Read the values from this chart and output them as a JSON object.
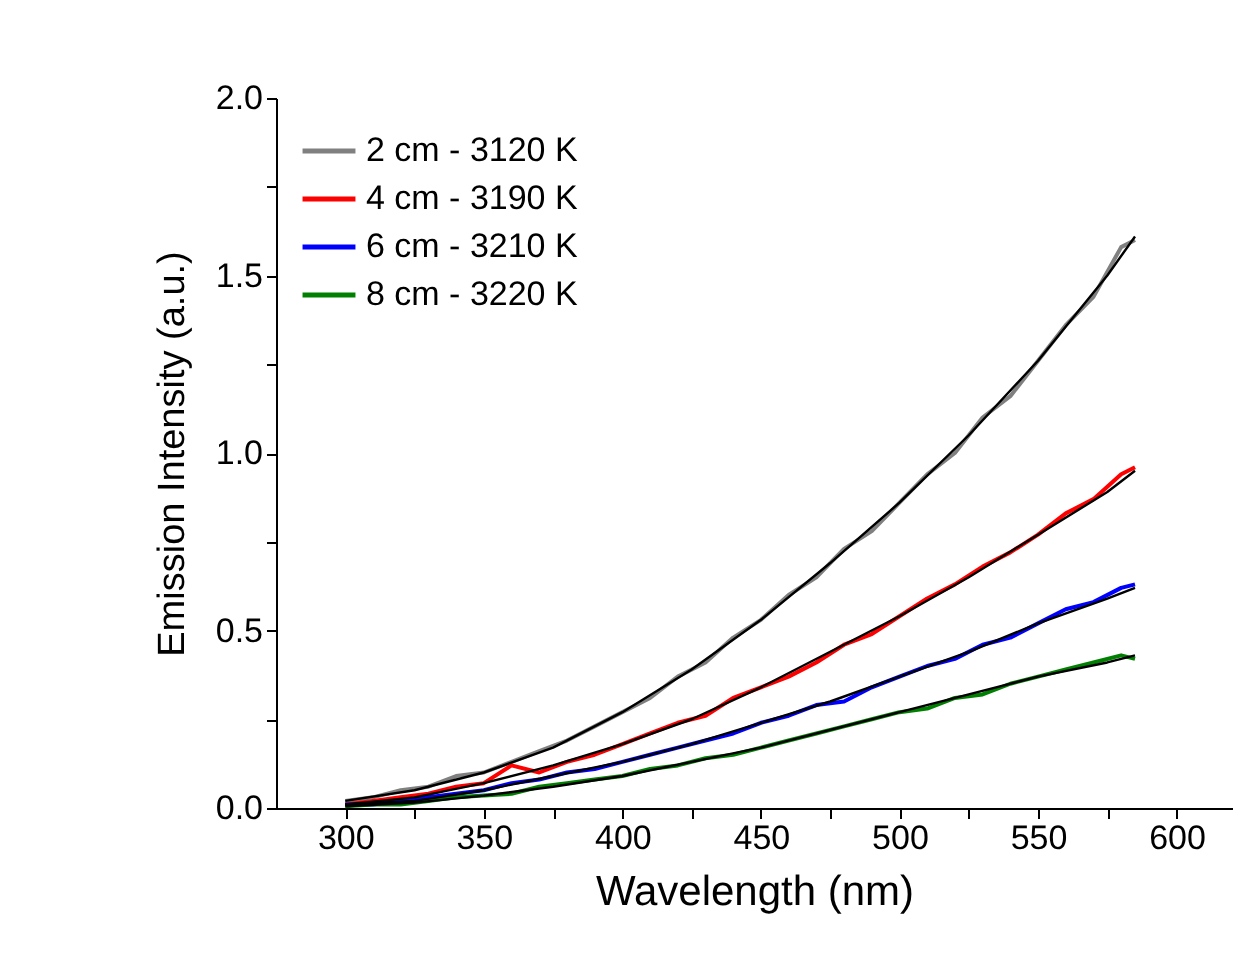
{
  "chart_data": {
    "type": "line",
    "xlabel": "Wavelength (nm)",
    "ylabel": "Emission Intensity (a.u.)",
    "x": [
      300,
      325,
      350,
      375,
      400,
      425,
      450,
      475,
      500,
      525,
      550,
      575,
      585
    ],
    "series": [
      {
        "name": "2 cm - 3120 K",
        "color": "#808080",
        "x": [
          300,
          310,
          320,
          330,
          340,
          350,
          360,
          370,
          380,
          390,
          400,
          410,
          420,
          430,
          440,
          450,
          460,
          470,
          480,
          490,
          500,
          510,
          520,
          530,
          540,
          550,
          560,
          570,
          580,
          585
        ],
        "values": [
          0.02,
          0.03,
          0.05,
          0.06,
          0.09,
          0.1,
          0.13,
          0.16,
          0.19,
          0.23,
          0.27,
          0.31,
          0.37,
          0.41,
          0.48,
          0.53,
          0.6,
          0.65,
          0.73,
          0.78,
          0.86,
          0.94,
          1.0,
          1.1,
          1.16,
          1.26,
          1.36,
          1.44,
          1.58,
          1.6
        ]
      },
      {
        "name": "4 cm - 3190 K",
        "color": "#ff0000",
        "x": [
          300,
          310,
          320,
          330,
          340,
          350,
          360,
          370,
          380,
          390,
          400,
          410,
          420,
          430,
          440,
          450,
          460,
          470,
          480,
          490,
          500,
          510,
          520,
          530,
          540,
          550,
          560,
          570,
          580,
          585
        ],
        "values": [
          0.01,
          0.02,
          0.03,
          0.04,
          0.06,
          0.07,
          0.12,
          0.1,
          0.13,
          0.15,
          0.18,
          0.21,
          0.24,
          0.26,
          0.31,
          0.34,
          0.37,
          0.41,
          0.46,
          0.49,
          0.54,
          0.59,
          0.63,
          0.68,
          0.72,
          0.77,
          0.83,
          0.87,
          0.94,
          0.96
        ]
      },
      {
        "name": "6 cm - 3210 K",
        "color": "#0000ff",
        "x": [
          300,
          310,
          320,
          330,
          340,
          350,
          360,
          370,
          380,
          390,
          400,
          410,
          420,
          430,
          440,
          450,
          460,
          470,
          480,
          490,
          500,
          510,
          520,
          530,
          540,
          550,
          560,
          570,
          580,
          585
        ],
        "values": [
          0.01,
          0.01,
          0.02,
          0.03,
          0.04,
          0.05,
          0.07,
          0.08,
          0.1,
          0.11,
          0.13,
          0.15,
          0.17,
          0.19,
          0.21,
          0.24,
          0.26,
          0.29,
          0.3,
          0.34,
          0.37,
          0.4,
          0.42,
          0.46,
          0.48,
          0.52,
          0.56,
          0.58,
          0.62,
          0.63
        ]
      },
      {
        "name": "8 cm - 3220 K",
        "color": "#008000",
        "x": [
          300,
          310,
          320,
          330,
          340,
          350,
          360,
          370,
          380,
          390,
          400,
          410,
          420,
          430,
          440,
          450,
          460,
          470,
          480,
          490,
          500,
          510,
          520,
          530,
          540,
          550,
          560,
          570,
          580,
          585
        ],
        "values": [
          0.005,
          0.01,
          0.01,
          0.02,
          0.03,
          0.035,
          0.04,
          0.06,
          0.07,
          0.08,
          0.09,
          0.11,
          0.12,
          0.14,
          0.15,
          0.17,
          0.19,
          0.21,
          0.23,
          0.25,
          0.27,
          0.28,
          0.31,
          0.32,
          0.35,
          0.37,
          0.39,
          0.41,
          0.43,
          0.42
        ]
      },
      {
        "color": "#000000",
        "values": [
          0.02,
          0.05,
          0.1,
          0.17,
          0.27,
          0.39,
          0.53,
          0.69,
          0.86,
          1.05,
          1.26,
          1.5,
          1.61
        ]
      },
      {
        "color": "#000000",
        "values": [
          0.01,
          0.03,
          0.07,
          0.12,
          0.18,
          0.25,
          0.34,
          0.44,
          0.54,
          0.65,
          0.77,
          0.89,
          0.95
        ]
      },
      {
        "color": "#000000",
        "values": [
          0.01,
          0.02,
          0.05,
          0.09,
          0.13,
          0.18,
          0.24,
          0.3,
          0.37,
          0.44,
          0.52,
          0.59,
          0.62
        ]
      },
      {
        "color": "#000000",
        "values": [
          0.005,
          0.015,
          0.035,
          0.06,
          0.09,
          0.13,
          0.17,
          0.22,
          0.27,
          0.32,
          0.37,
          0.41,
          0.43
        ]
      }
    ],
    "xlim": [
      275,
      620
    ],
    "xticks": [
      300,
      {
        "value": 325,
        "label": null
      },
      350,
      {
        "value": 375,
        "label": null
      },
      400,
      {
        "value": 425,
        "label": null
      },
      450,
      {
        "value": 475,
        "label": null
      },
      500,
      {
        "value": 525,
        "label": null
      },
      550,
      {
        "value": 575,
        "label": null
      },
      600
    ],
    "ylim": [
      0,
      2
    ],
    "yticks": [
      {
        "value": 0,
        "label": "0.0"
      },
      {
        "value": 0.25,
        "label": null
      },
      0.5,
      {
        "value": 0.75,
        "label": null
      },
      {
        "value": 1,
        "label": "1.0"
      },
      {
        "value": 1.25,
        "label": null
      },
      1.5,
      {
        "value": 1.75,
        "label": null
      },
      {
        "value": 2,
        "label": "2.0"
      }
    ],
    "legend": "top left",
    "grid": false
  }
}
